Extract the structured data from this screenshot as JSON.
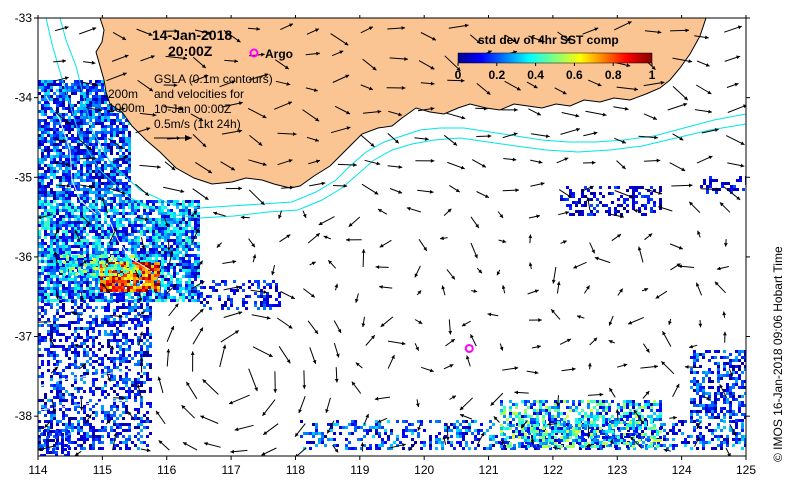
{
  "header": {
    "date": "14-Jan-2018",
    "time": "20:00Z",
    "argo_label": "Argo"
  },
  "contours_note": {
    "line1": "200m",
    "line2": "1000m"
  },
  "info_block": {
    "line1": "GSLA (0.1m contours)",
    "line2": "and velocities for",
    "line3": "10-Jan 00:00Z",
    "line4": "0.5m/s (1kt 24h)"
  },
  "colorbar": {
    "title": "std dev of 4hr SST comp",
    "ticks": [
      "0",
      "0.2",
      "0.4",
      "0.6",
      "0.8",
      "1"
    ],
    "range": [
      0,
      1
    ]
  },
  "axes": {
    "x_ticks": [
      "114",
      "115",
      "116",
      "117",
      "118",
      "119",
      "120",
      "121",
      "122",
      "123",
      "124",
      "125"
    ],
    "y_ticks": [
      "-33",
      "-34",
      "-35",
      "-36",
      "-37",
      "-38"
    ],
    "lon_range": [
      114,
      125
    ],
    "lat_range": [
      -38.5,
      -33
    ]
  },
  "argo_float": {
    "lon": 120.7,
    "lat": -37.15
  },
  "credit": "© IMOS 16-Jan-2018 09:06 Hobart Time",
  "colors": {
    "land": "#fbc593",
    "land_outline": "#000000",
    "bathymetry": "#00e5e5",
    "argo": "#ff00ff",
    "arrow": "#000000"
  }
}
